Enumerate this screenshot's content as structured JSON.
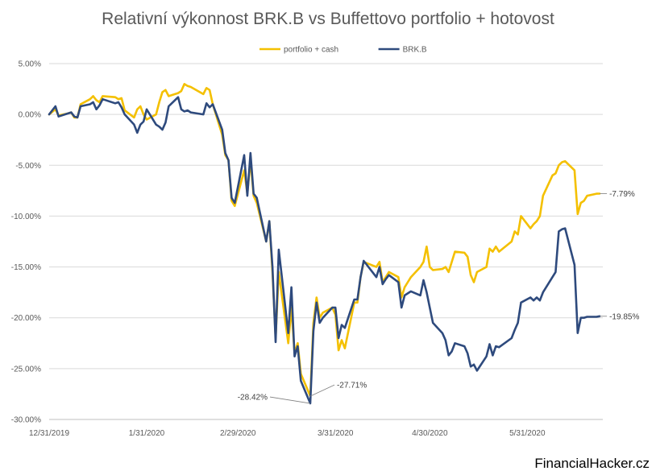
{
  "chart_data": {
    "type": "line",
    "title": "Relativní výkonnost BRK.B vs Buffettovo portfolio + hotovost",
    "xlabel": "",
    "ylabel": "",
    "ylim": [
      -0.3,
      0.05
    ],
    "y_ticks": [
      "5.00%",
      "0.00%",
      "-5.00%",
      "-10.00%",
      "-15.00%",
      "-20.00%",
      "-25.00%",
      "-30.00%"
    ],
    "y_tick_values": [
      0.05,
      0,
      -0.05,
      -0.1,
      -0.15,
      -0.2,
      -0.25,
      -0.3
    ],
    "x_range": [
      "2019-12-31",
      "2020-06-24"
    ],
    "x_ticks": [
      "12/31/2019",
      "1/31/2020",
      "2/29/2020",
      "3/31/2020",
      "4/30/2020",
      "5/31/2020"
    ],
    "x_tick_dates": [
      "2019-12-31",
      "2020-01-31",
      "2020-02-29",
      "2020-03-31",
      "2020-04-30",
      "2020-05-31"
    ],
    "grid": "horizontal",
    "legend": "top",
    "series": [
      {
        "name": "portfolio + cash",
        "color": "#F4C000",
        "points": [
          [
            "2019-12-31",
            0.0
          ],
          [
            "2020-01-02",
            0.005
          ],
          [
            "2020-01-03",
            -0.001
          ],
          [
            "2020-01-06",
            0.001
          ],
          [
            "2020-01-07",
            0.002
          ],
          [
            "2020-01-08",
            -0.003
          ],
          [
            "2020-01-09",
            -0.003
          ],
          [
            "2020-01-10",
            0.01
          ],
          [
            "2020-01-13",
            0.015
          ],
          [
            "2020-01-14",
            0.018
          ],
          [
            "2020-01-15",
            0.014
          ],
          [
            "2020-01-16",
            0.012
          ],
          [
            "2020-01-17",
            0.018
          ],
          [
            "2020-01-21",
            0.017
          ],
          [
            "2020-01-22",
            0.015
          ],
          [
            "2020-01-23",
            0.016
          ],
          [
            "2020-01-24",
            0.004
          ],
          [
            "2020-01-27",
            -0.003
          ],
          [
            "2020-01-28",
            0.005
          ],
          [
            "2020-01-29",
            0.008
          ],
          [
            "2020-01-30",
            0.0
          ],
          [
            "2020-01-31",
            -0.005
          ],
          [
            "2020-02-03",
            0.0
          ],
          [
            "2020-02-04",
            0.012
          ],
          [
            "2020-02-05",
            0.022
          ],
          [
            "2020-02-06",
            0.024
          ],
          [
            "2020-02-07",
            0.018
          ],
          [
            "2020-02-10",
            0.021
          ],
          [
            "2020-02-11",
            0.023
          ],
          [
            "2020-02-12",
            0.03
          ],
          [
            "2020-02-13",
            0.028
          ],
          [
            "2020-02-14",
            0.027
          ],
          [
            "2020-02-18",
            0.02
          ],
          [
            "2020-02-19",
            0.026
          ],
          [
            "2020-02-20",
            0.024
          ],
          [
            "2020-02-21",
            0.01
          ],
          [
            "2020-02-24",
            -0.02
          ],
          [
            "2020-02-25",
            -0.04
          ],
          [
            "2020-02-26",
            -0.045
          ],
          [
            "2020-02-27",
            -0.085
          ],
          [
            "2020-02-28",
            -0.09
          ],
          [
            "2020-03-02",
            -0.055
          ],
          [
            "2020-03-03",
            -0.078
          ],
          [
            "2020-03-04",
            -0.045
          ],
          [
            "2020-03-05",
            -0.08
          ],
          [
            "2020-03-06",
            -0.087
          ],
          [
            "2020-03-09",
            -0.125
          ],
          [
            "2020-03-10",
            -0.105
          ],
          [
            "2020-03-11",
            -0.155
          ],
          [
            "2020-03-12",
            -0.22
          ],
          [
            "2020-03-13",
            -0.155
          ],
          [
            "2020-03-16",
            -0.225
          ],
          [
            "2020-03-17",
            -0.19
          ],
          [
            "2020-03-18",
            -0.235
          ],
          [
            "2020-03-19",
            -0.225
          ],
          [
            "2020-03-20",
            -0.255
          ],
          [
            "2020-03-23",
            -0.277
          ],
          [
            "2020-03-24",
            -0.205
          ],
          [
            "2020-03-25",
            -0.18
          ],
          [
            "2020-03-26",
            -0.2
          ],
          [
            "2020-03-27",
            -0.195
          ],
          [
            "2020-03-30",
            -0.19
          ],
          [
            "2020-03-31",
            -0.197
          ],
          [
            "2020-04-01",
            -0.232
          ],
          [
            "2020-04-02",
            -0.222
          ],
          [
            "2020-04-03",
            -0.23
          ],
          [
            "2020-04-06",
            -0.185
          ],
          [
            "2020-04-07",
            -0.185
          ],
          [
            "2020-04-08",
            -0.16
          ],
          [
            "2020-04-09",
            -0.145
          ],
          [
            "2020-04-13",
            -0.15
          ],
          [
            "2020-04-14",
            -0.145
          ],
          [
            "2020-04-15",
            -0.165
          ],
          [
            "2020-04-16",
            -0.16
          ],
          [
            "2020-04-17",
            -0.155
          ],
          [
            "2020-04-20",
            -0.16
          ],
          [
            "2020-04-21",
            -0.18
          ],
          [
            "2020-04-22",
            -0.17
          ],
          [
            "2020-04-23",
            -0.165
          ],
          [
            "2020-04-24",
            -0.16
          ],
          [
            "2020-04-27",
            -0.15
          ],
          [
            "2020-04-28",
            -0.145
          ],
          [
            "2020-04-29",
            -0.13
          ],
          [
            "2020-04-30",
            -0.15
          ],
          [
            "2020-05-01",
            -0.153
          ],
          [
            "2020-05-04",
            -0.152
          ],
          [
            "2020-05-05",
            -0.15
          ],
          [
            "2020-05-06",
            -0.155
          ],
          [
            "2020-05-07",
            -0.145
          ],
          [
            "2020-05-08",
            -0.135
          ],
          [
            "2020-05-11",
            -0.136
          ],
          [
            "2020-05-12",
            -0.14
          ],
          [
            "2020-05-13",
            -0.158
          ],
          [
            "2020-05-14",
            -0.165
          ],
          [
            "2020-05-15",
            -0.155
          ],
          [
            "2020-05-18",
            -0.15
          ],
          [
            "2020-05-19",
            -0.132
          ],
          [
            "2020-05-20",
            -0.135
          ],
          [
            "2020-05-21",
            -0.13
          ],
          [
            "2020-05-22",
            -0.135
          ],
          [
            "2020-05-26",
            -0.125
          ],
          [
            "2020-05-27",
            -0.115
          ],
          [
            "2020-05-28",
            -0.118
          ],
          [
            "2020-05-29",
            -0.1
          ],
          [
            "2020-06-01",
            -0.112
          ],
          [
            "2020-06-02",
            -0.108
          ],
          [
            "2020-06-03",
            -0.105
          ],
          [
            "2020-06-04",
            -0.1
          ],
          [
            "2020-06-05",
            -0.08
          ],
          [
            "2020-06-08",
            -0.06
          ],
          [
            "2020-06-09",
            -0.058
          ],
          [
            "2020-06-10",
            -0.05
          ],
          [
            "2020-06-11",
            -0.047
          ],
          [
            "2020-06-12",
            -0.046
          ],
          [
            "2020-06-15",
            -0.055
          ],
          [
            "2020-06-16",
            -0.098
          ],
          [
            "2020-06-17",
            -0.087
          ],
          [
            "2020-06-18",
            -0.085
          ],
          [
            "2020-06-19",
            -0.08
          ],
          [
            "2020-06-22",
            -0.078
          ],
          [
            "2020-06-23",
            -0.0779
          ]
        ]
      },
      {
        "name": "BRK.B",
        "color": "#2E4A7D",
        "points": [
          [
            "2019-12-31",
            0.0
          ],
          [
            "2020-01-02",
            0.008
          ],
          [
            "2020-01-03",
            -0.002
          ],
          [
            "2020-01-06",
            0.001
          ],
          [
            "2020-01-07",
            0.002
          ],
          [
            "2020-01-08",
            -0.002
          ],
          [
            "2020-01-09",
            -0.003
          ],
          [
            "2020-01-10",
            0.008
          ],
          [
            "2020-01-13",
            0.01
          ],
          [
            "2020-01-14",
            0.012
          ],
          [
            "2020-01-15",
            0.005
          ],
          [
            "2020-01-16",
            0.009
          ],
          [
            "2020-01-17",
            0.015
          ],
          [
            "2020-01-21",
            0.011
          ],
          [
            "2020-01-22",
            0.012
          ],
          [
            "2020-01-23",
            0.007
          ],
          [
            "2020-01-24",
            0.0
          ],
          [
            "2020-01-27",
            -0.01
          ],
          [
            "2020-01-28",
            -0.018
          ],
          [
            "2020-01-29",
            -0.01
          ],
          [
            "2020-01-30",
            -0.007
          ],
          [
            "2020-01-31",
            0.005
          ],
          [
            "2020-02-03",
            -0.01
          ],
          [
            "2020-02-04",
            -0.012
          ],
          [
            "2020-02-05",
            -0.015
          ],
          [
            "2020-02-06",
            -0.008
          ],
          [
            "2020-02-07",
            0.008
          ],
          [
            "2020-02-10",
            0.017
          ],
          [
            "2020-02-11",
            0.005
          ],
          [
            "2020-02-12",
            0.003
          ],
          [
            "2020-02-13",
            0.004
          ],
          [
            "2020-02-14",
            0.002
          ],
          [
            "2020-02-18",
            0.0
          ],
          [
            "2020-02-19",
            0.011
          ],
          [
            "2020-02-20",
            0.007
          ],
          [
            "2020-02-21",
            0.01
          ],
          [
            "2020-02-24",
            -0.015
          ],
          [
            "2020-02-25",
            -0.038
          ],
          [
            "2020-02-26",
            -0.045
          ],
          [
            "2020-02-27",
            -0.082
          ],
          [
            "2020-02-28",
            -0.087
          ],
          [
            "2020-03-02",
            -0.04
          ],
          [
            "2020-03-03",
            -0.08
          ],
          [
            "2020-03-04",
            -0.038
          ],
          [
            "2020-03-05",
            -0.078
          ],
          [
            "2020-03-06",
            -0.082
          ],
          [
            "2020-03-09",
            -0.125
          ],
          [
            "2020-03-10",
            -0.105
          ],
          [
            "2020-03-11",
            -0.15
          ],
          [
            "2020-03-12",
            -0.224
          ],
          [
            "2020-03-13",
            -0.133
          ],
          [
            "2020-03-16",
            -0.215
          ],
          [
            "2020-03-17",
            -0.17
          ],
          [
            "2020-03-18",
            -0.238
          ],
          [
            "2020-03-19",
            -0.228
          ],
          [
            "2020-03-20",
            -0.262
          ],
          [
            "2020-03-23",
            -0.2842
          ],
          [
            "2020-03-24",
            -0.213
          ],
          [
            "2020-03-25",
            -0.185
          ],
          [
            "2020-03-26",
            -0.205
          ],
          [
            "2020-03-27",
            -0.2
          ],
          [
            "2020-03-30",
            -0.19
          ],
          [
            "2020-03-31",
            -0.19
          ],
          [
            "2020-04-01",
            -0.22
          ],
          [
            "2020-04-02",
            -0.207
          ],
          [
            "2020-04-03",
            -0.21
          ],
          [
            "2020-04-06",
            -0.182
          ],
          [
            "2020-04-07",
            -0.182
          ],
          [
            "2020-04-08",
            -0.16
          ],
          [
            "2020-04-09",
            -0.144
          ],
          [
            "2020-04-13",
            -0.16
          ],
          [
            "2020-04-14",
            -0.15
          ],
          [
            "2020-04-15",
            -0.167
          ],
          [
            "2020-04-16",
            -0.162
          ],
          [
            "2020-04-17",
            -0.158
          ],
          [
            "2020-04-20",
            -0.165
          ],
          [
            "2020-04-21",
            -0.19
          ],
          [
            "2020-04-22",
            -0.178
          ],
          [
            "2020-04-23",
            -0.176
          ],
          [
            "2020-04-24",
            -0.174
          ],
          [
            "2020-04-27",
            -0.178
          ],
          [
            "2020-04-28",
            -0.163
          ],
          [
            "2020-04-29",
            -0.175
          ],
          [
            "2020-04-30",
            -0.19
          ],
          [
            "2020-05-01",
            -0.205
          ],
          [
            "2020-05-04",
            -0.215
          ],
          [
            "2020-05-05",
            -0.222
          ],
          [
            "2020-05-06",
            -0.237
          ],
          [
            "2020-05-07",
            -0.233
          ],
          [
            "2020-05-08",
            -0.225
          ],
          [
            "2020-05-11",
            -0.228
          ],
          [
            "2020-05-12",
            -0.235
          ],
          [
            "2020-05-13",
            -0.248
          ],
          [
            "2020-05-14",
            -0.246
          ],
          [
            "2020-05-15",
            -0.252
          ],
          [
            "2020-05-18",
            -0.238
          ],
          [
            "2020-05-19",
            -0.226
          ],
          [
            "2020-05-20",
            -0.237
          ],
          [
            "2020-05-21",
            -0.228
          ],
          [
            "2020-05-22",
            -0.229
          ],
          [
            "2020-05-26",
            -0.22
          ],
          [
            "2020-05-27",
            -0.212
          ],
          [
            "2020-05-28",
            -0.205
          ],
          [
            "2020-05-29",
            -0.185
          ],
          [
            "2020-06-01",
            -0.18
          ],
          [
            "2020-06-02",
            -0.183
          ],
          [
            "2020-06-03",
            -0.18
          ],
          [
            "2020-06-04",
            -0.183
          ],
          [
            "2020-06-05",
            -0.175
          ],
          [
            "2020-06-08",
            -0.16
          ],
          [
            "2020-06-09",
            -0.155
          ],
          [
            "2020-06-10",
            -0.115
          ],
          [
            "2020-06-11",
            -0.113
          ],
          [
            "2020-06-12",
            -0.112
          ],
          [
            "2020-06-15",
            -0.148
          ],
          [
            "2020-06-16",
            -0.215
          ],
          [
            "2020-06-17",
            -0.2
          ],
          [
            "2020-06-18",
            -0.2
          ],
          [
            "2020-06-19",
            -0.199
          ],
          [
            "2020-06-22",
            -0.199
          ],
          [
            "2020-06-23",
            -0.1985
          ]
        ]
      }
    ],
    "annotations": [
      {
        "text": "-7.79%",
        "series": "portfolio + cash",
        "date": "2020-06-23",
        "value": -0.0779
      },
      {
        "text": "-19.85%",
        "series": "BRK.B",
        "date": "2020-06-23",
        "value": -0.1985
      },
      {
        "text": "-28.42%",
        "series": "BRK.B",
        "date": "2020-03-23",
        "value": -0.2842
      },
      {
        "text": "-27.71%",
        "series": "portfolio + cash",
        "date": "2020-03-23",
        "value": -0.2771
      }
    ]
  },
  "watermark": "FinancialHacker.cz"
}
